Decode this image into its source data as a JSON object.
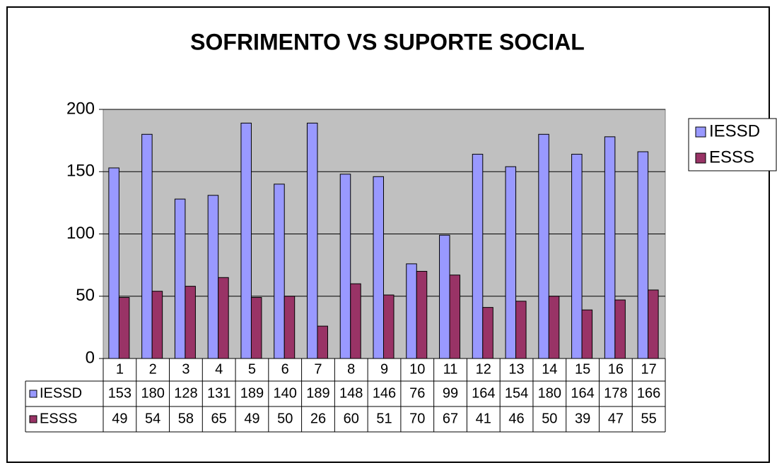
{
  "chart_data": {
    "type": "bar",
    "title": "SOFRIMENTO VS SUPORTE SOCIAL",
    "categories": [
      "1",
      "2",
      "3",
      "4",
      "5",
      "6",
      "7",
      "8",
      "9",
      "10",
      "11",
      "12",
      "13",
      "14",
      "15",
      "16",
      "17"
    ],
    "series": [
      {
        "name": "IESSD",
        "color": "#9999ff",
        "values": [
          153,
          180,
          128,
          131,
          189,
          140,
          189,
          148,
          146,
          76,
          99,
          164,
          154,
          180,
          164,
          178,
          166
        ]
      },
      {
        "name": "ESSS",
        "color": "#993366",
        "values": [
          49,
          54,
          58,
          65,
          49,
          50,
          26,
          60,
          51,
          70,
          67,
          41,
          46,
          50,
          39,
          47,
          55
        ]
      }
    ],
    "ylim": [
      0,
      200
    ],
    "yticks": [
      0,
      50,
      100,
      150,
      200
    ],
    "grid": true,
    "legend": "right",
    "plot_background": "#c0c0c0"
  }
}
